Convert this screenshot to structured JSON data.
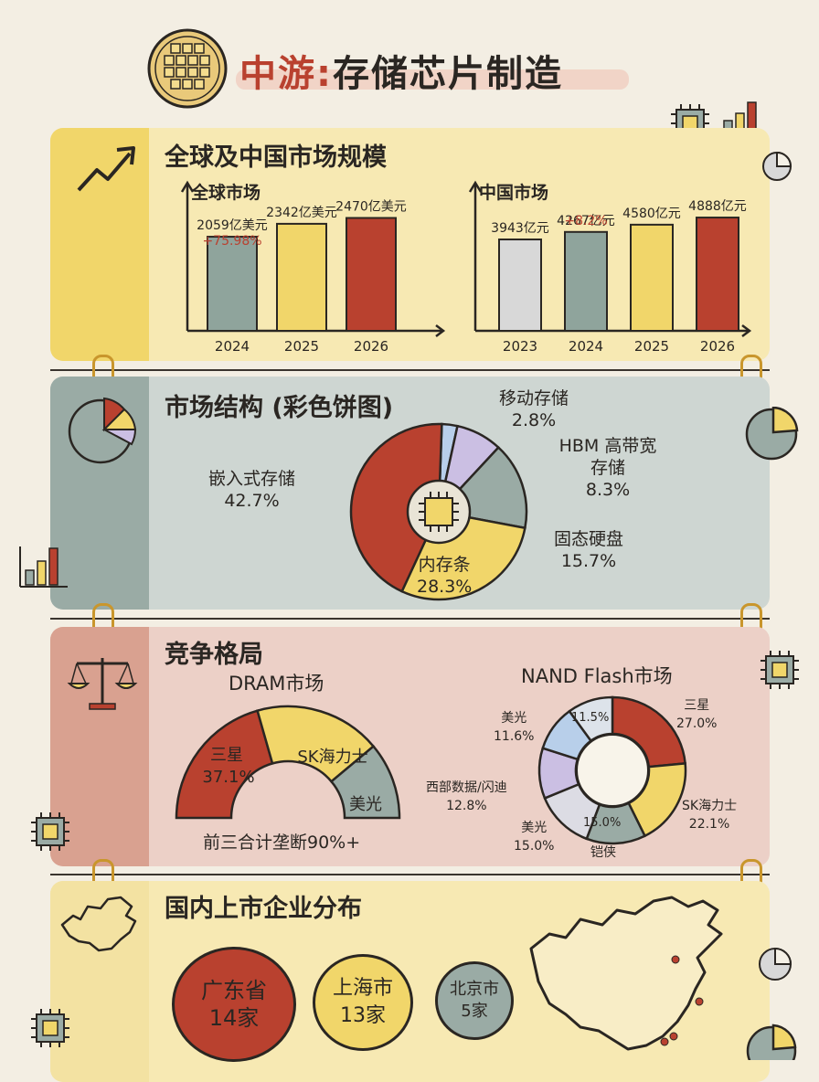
{
  "header": {
    "title_part1": "中游:",
    "title_part2": "存储芯片制造"
  },
  "colors": {
    "red": "#b9412f",
    "yellow": "#f1d66a",
    "slate": "#9aaba5",
    "grey": "#d8d8d8",
    "blue": "#b8cfea",
    "lavender": "#cbbfe3",
    "lightblue": "#c9dcf0"
  },
  "sections": {
    "market": {
      "title": "全球及中国市场规模"
    },
    "structure": {
      "title": "市场结构 (彩色饼图)"
    },
    "competition": {
      "title": "竞争格局"
    },
    "distribution": {
      "title": "国内上市企业分布"
    }
  },
  "chart_data": [
    {
      "type": "bar",
      "title": "全球市场",
      "categories": [
        "2024",
        "2025",
        "2026"
      ],
      "values": [
        2059,
        2342,
        2470
      ],
      "value_labels": [
        "2059亿美元",
        "2342亿美元",
        "2470亿美元"
      ],
      "colors": [
        "#8fa49c",
        "#f1d66a",
        "#b9412f"
      ],
      "annotation": "+75.98%",
      "ylim": [
        0,
        2800
      ]
    },
    {
      "type": "bar",
      "title": "中国市场",
      "categories": [
        "2023",
        "2024",
        "2025",
        "2026"
      ],
      "values": [
        3943,
        4267,
        4580,
        4888
      ],
      "value_labels": [
        "3943亿元",
        "4267亿元",
        "4580亿元",
        "4888亿元"
      ],
      "colors": [
        "#d8d8d8",
        "#8fa49c",
        "#f1d66a",
        "#b9412f"
      ],
      "annotation": "+8.2%",
      "ylim": [
        0,
        5600
      ]
    },
    {
      "type": "pie",
      "title": "市场结构",
      "slices": [
        {
          "label": "嵌入式存储",
          "value": 42.7,
          "display": "42.7%",
          "color": "#b9412f"
        },
        {
          "label": "移动存储",
          "value": 2.8,
          "display": "2.8%",
          "color": "#b8cfea"
        },
        {
          "label": "HBM 高带宽存储",
          "value": 8.3,
          "display": "8.3%",
          "color": "#cbbfe3"
        },
        {
          "label": "固态硬盘",
          "value": 15.7,
          "display": "15.7%",
          "color": "#9aaba5"
        },
        {
          "label": "内存条",
          "value": 28.3,
          "display": "28.3%",
          "color": "#f1d66a"
        }
      ]
    },
    {
      "type": "pie",
      "title": "DRAM市场",
      "slices": [
        {
          "label": "三星",
          "value": 37.1,
          "display": "37.1%",
          "color": "#b9412f"
        },
        {
          "label": "SK海力士",
          "color": "#f1d66a"
        },
        {
          "label": "美光",
          "color": "#9aaba5"
        }
      ],
      "note": "前三合计垄断90%+"
    },
    {
      "type": "pie",
      "title": "NAND Flash市场",
      "slices": [
        {
          "label": "三星",
          "value": 27.0,
          "display": "27.0%",
          "color": "#b9412f"
        },
        {
          "label": "SK海力士",
          "value": 22.1,
          "display": "22.1%",
          "color": "#f1d66a"
        },
        {
          "label": "铠侠",
          "value": 15.0,
          "display": "15.0%",
          "color": "#9aaba5"
        },
        {
          "label": "美光",
          "value": 15.0,
          "display": "15.0%",
          "color": "#dcdce4"
        },
        {
          "label": "西部数据/闪迪",
          "value": 12.8,
          "display": "12.8%",
          "color": "#cbbfe3"
        },
        {
          "label": "美光",
          "value": 11.6,
          "display": "11.6%",
          "color": "#b8cfea"
        },
        {
          "label": "",
          "value": 11.5,
          "display": "11.5%",
          "color": "#dde3ea"
        }
      ]
    }
  ],
  "provinces": [
    {
      "name": "广东省",
      "count": "14家",
      "color": "#b9412f"
    },
    {
      "name": "上海市",
      "count": "13家",
      "color": "#f1d66a"
    },
    {
      "name": "北京市",
      "count": "5家",
      "color": "#9aaba5"
    }
  ]
}
